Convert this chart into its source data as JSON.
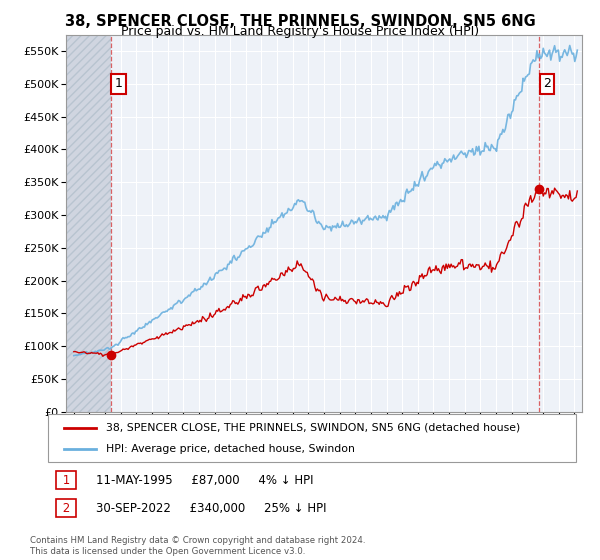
{
  "title": "38, SPENCER CLOSE, THE PRINNELS, SWINDON, SN5 6NG",
  "subtitle": "Price paid vs. HM Land Registry's House Price Index (HPI)",
  "sale1_date": 1995.36,
  "sale1_price": 87000,
  "sale2_date": 2022.75,
  "sale2_price": 340000,
  "ylabel_ticks": [
    "£0",
    "£50K",
    "£100K",
    "£150K",
    "£200K",
    "£250K",
    "£300K",
    "£350K",
    "£400K",
    "£450K",
    "£500K",
    "£550K"
  ],
  "ylabel_vals": [
    0,
    50000,
    100000,
    150000,
    200000,
    250000,
    300000,
    350000,
    400000,
    450000,
    500000,
    550000
  ],
  "xlim": [
    1992.5,
    2025.5
  ],
  "ylim": [
    0,
    575000
  ],
  "hpi_color": "#6ab0de",
  "price_color": "#cc0000",
  "bg_color": "#eef2f8",
  "grid_color": "#ffffff",
  "hatch_color": "#d0d5e0",
  "legend_label1": "38, SPENCER CLOSE, THE PRINNELS, SWINDON, SN5 6NG (detached house)",
  "legend_label2": "HPI: Average price, detached house, Swindon",
  "annotation1": "1",
  "annotation2": "2",
  "ann1_text": "11-MAY-1995     £87,000     4% ↓ HPI",
  "ann2_text": "30-SEP-2022     £340,000     25% ↓ HPI",
  "footer": "Contains HM Land Registry data © Crown copyright and database right 2024.\nThis data is licensed under the Open Government Licence v3.0.",
  "title_fontsize": 10.5,
  "subtitle_fontsize": 9
}
